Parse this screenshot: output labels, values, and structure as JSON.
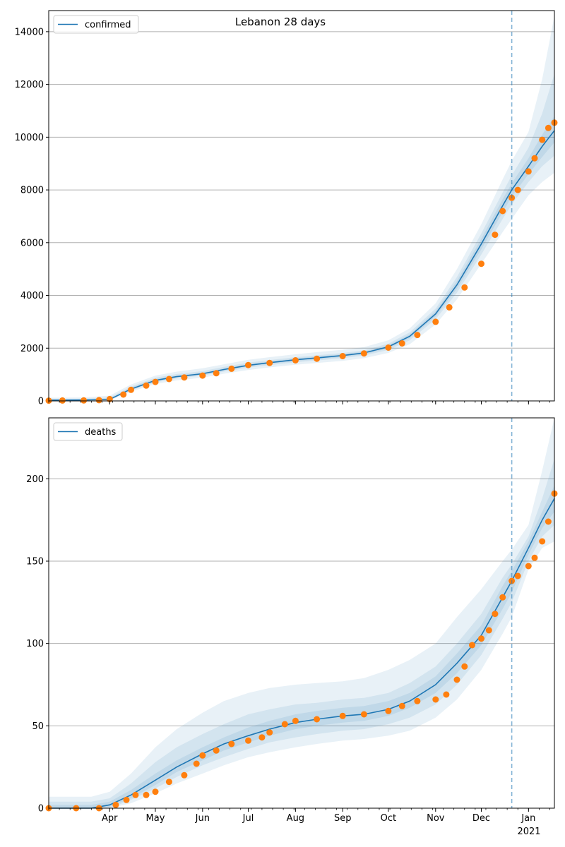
{
  "figure": {
    "title": "Lebanon 28 days",
    "year_label": "2021"
  },
  "colors": {
    "model_line": "#1f77b4",
    "band": "#1f77b4",
    "observed": "#ff7f0e",
    "grid": "#b0b0b0",
    "forecast_start_line": "#1f77b4"
  },
  "chart_data": [
    {
      "type": "line",
      "name": "confirmed",
      "legend": "confirmed",
      "legend_position": "top-left",
      "grid": "y",
      "xlim": [
        "2020-02-21",
        "2021-01-18"
      ],
      "ylim": [
        0,
        14800
      ],
      "yticks": [
        0,
        2000,
        4000,
        6000,
        8000,
        10000,
        12000,
        14000
      ],
      "forecast_start": "2020-12-21",
      "model": {
        "x": [
          "2020-02-21",
          "2020-03-15",
          "2020-04-01",
          "2020-04-15",
          "2020-05-01",
          "2020-05-15",
          "2020-06-01",
          "2020-06-15",
          "2020-07-01",
          "2020-07-15",
          "2020-08-01",
          "2020-08-15",
          "2020-09-01",
          "2020-09-15",
          "2020-10-01",
          "2020-10-15",
          "2020-11-01",
          "2020-11-15",
          "2020-12-01",
          "2020-12-15",
          "2020-12-21",
          "2021-01-01",
          "2021-01-10",
          "2021-01-18"
        ],
        "y": [
          30,
          35,
          60,
          450,
          780,
          920,
          1030,
          1190,
          1350,
          1450,
          1560,
          1630,
          1720,
          1820,
          2050,
          2450,
          3300,
          4400,
          5950,
          7400,
          8000,
          8900,
          9650,
          10250
        ]
      },
      "bands": [
        {
          "lo": [
            0,
            0,
            20,
            350,
            640,
            780,
            880,
            1030,
            1170,
            1270,
            1370,
            1440,
            1520,
            1620,
            1820,
            2150,
            2900,
            3850,
            5200,
            6400,
            6900,
            7800,
            8300,
            8650
          ],
          "hi": [
            120,
            130,
            200,
            620,
            960,
            1110,
            1240,
            1390,
            1560,
            1660,
            1770,
            1850,
            1940,
            2040,
            2300,
            2750,
            3700,
            5000,
            6700,
            8400,
            9100,
            10200,
            12200,
            14600
          ]
        },
        {
          "lo": [
            10,
            15,
            40,
            400,
            700,
            850,
            960,
            1110,
            1260,
            1360,
            1460,
            1530,
            1620,
            1720,
            1930,
            2300,
            3100,
            4100,
            5550,
            6900,
            7450,
            8300,
            8900,
            9300
          ],
          "hi": [
            70,
            80,
            130,
            540,
            880,
            1020,
            1130,
            1290,
            1450,
            1550,
            1660,
            1730,
            1820,
            1920,
            2170,
            2600,
            3500,
            4700,
            6350,
            7900,
            8550,
            9600,
            10900,
            12400
          ]
        },
        {
          "lo": [
            20,
            25,
            50,
            430,
            740,
            890,
            1000,
            1150,
            1310,
            1410,
            1510,
            1580,
            1670,
            1770,
            1990,
            2380,
            3200,
            4250,
            5750,
            7150,
            7750,
            8600,
            9250,
            9800
          ],
          "hi": [
            45,
            50,
            90,
            500,
            830,
            960,
            1070,
            1230,
            1390,
            1490,
            1610,
            1680,
            1770,
            1870,
            2110,
            2520,
            3400,
            4550,
            6150,
            7650,
            8250,
            9200,
            10100,
            10800
          ]
        }
      ],
      "observed": {
        "x": [
          "2020-02-21",
          "2020-03-01",
          "2020-03-15",
          "2020-03-25",
          "2020-04-01",
          "2020-04-10",
          "2020-04-15",
          "2020-04-25",
          "2020-05-01",
          "2020-05-10",
          "2020-05-20",
          "2020-06-01",
          "2020-06-10",
          "2020-06-20",
          "2020-07-01",
          "2020-07-15",
          "2020-08-01",
          "2020-08-15",
          "2020-09-01",
          "2020-09-15",
          "2020-10-01",
          "2020-10-10",
          "2020-10-20",
          "2020-11-01",
          "2020-11-10",
          "2020-11-20",
          "2020-12-01",
          "2020-12-10",
          "2020-12-15",
          "2020-12-21",
          "2020-12-25",
          "2021-01-01",
          "2021-01-05",
          "2021-01-10",
          "2021-01-14",
          "2021-01-18"
        ],
        "y": [
          10,
          15,
          20,
          30,
          70,
          240,
          420,
          580,
          720,
          830,
          890,
          960,
          1050,
          1220,
          1360,
          1440,
          1540,
          1600,
          1700,
          1800,
          2020,
          2180,
          2500,
          3000,
          3550,
          4300,
          5200,
          6300,
          7200,
          7700,
          8000,
          8700,
          9200,
          9900,
          10350,
          10550
        ]
      }
    },
    {
      "type": "line",
      "name": "deaths",
      "legend": "deaths",
      "legend_position": "top-left",
      "grid": "y",
      "xlim": [
        "2020-02-21",
        "2021-01-18"
      ],
      "ylim": [
        0,
        237
      ],
      "yticks": [
        0,
        50,
        100,
        150,
        200
      ],
      "forecast_start": "2020-12-21",
      "xticks": [
        "Apr",
        "May",
        "Jun",
        "Jul",
        "Aug",
        "Sep",
        "Oct",
        "Nov",
        "Dec",
        "Jan"
      ],
      "xtick_dates": [
        "2020-04-01",
        "2020-05-01",
        "2020-06-01",
        "2020-07-01",
        "2020-08-01",
        "2020-09-01",
        "2020-10-01",
        "2020-11-01",
        "2020-12-01",
        "2021-01-01"
      ],
      "model": {
        "x": [
          "2020-02-21",
          "2020-03-20",
          "2020-04-01",
          "2020-04-15",
          "2020-05-01",
          "2020-05-15",
          "2020-06-01",
          "2020-06-15",
          "2020-07-01",
          "2020-07-15",
          "2020-08-01",
          "2020-08-15",
          "2020-09-01",
          "2020-09-15",
          "2020-10-01",
          "2020-10-15",
          "2020-11-01",
          "2020-11-15",
          "2020-12-01",
          "2020-12-15",
          "2020-12-21",
          "2021-01-01",
          "2021-01-10",
          "2021-01-18"
        ],
        "y": [
          0,
          0,
          2,
          8,
          17,
          25,
          33,
          39,
          44,
          48,
          52,
          54,
          56,
          57,
          60,
          65,
          75,
          88,
          105,
          128,
          138,
          158,
          175,
          188
        ]
      },
      "bands": [
        {
          "lo": [
            0,
            0,
            0,
            3,
            9,
            15,
            21,
            26,
            31,
            34,
            37,
            39,
            41,
            42,
            44,
            47,
            55,
            66,
            84,
            106,
            116,
            145,
            158,
            162
          ],
          "hi": [
            7,
            7,
            10,
            21,
            37,
            48,
            58,
            65,
            70,
            73,
            75,
            76,
            77,
            79,
            84,
            90,
            100,
            116,
            133,
            150,
            157,
            172,
            205,
            237
          ]
        },
        {
          "lo": [
            0,
            0,
            0,
            5,
            12,
            19,
            26,
            31,
            36,
            40,
            43,
            45,
            47,
            48,
            51,
            55,
            63,
            75,
            93,
            115,
            125,
            150,
            165,
            172
          ],
          "hi": [
            4,
            4,
            6,
            15,
            28,
            37,
            45,
            51,
            57,
            60,
            63,
            64,
            66,
            67,
            70,
            76,
            86,
            100,
            118,
            140,
            148,
            165,
            188,
            212
          ]
        },
        {
          "lo": [
            0,
            0,
            1,
            6,
            14,
            22,
            29,
            35,
            40,
            44,
            48,
            50,
            52,
            53,
            56,
            61,
            70,
            82,
            99,
            121,
            131,
            154,
            170,
            180
          ],
          "hi": [
            2,
            2,
            4,
            11,
            21,
            29,
            37,
            43,
            49,
            53,
            57,
            59,
            61,
            62,
            65,
            70,
            80,
            94,
            111,
            135,
            144,
            162,
            180,
            196
          ]
        }
      ],
      "observed": {
        "x": [
          "2020-02-21",
          "2020-03-10",
          "2020-03-25",
          "2020-04-05",
          "2020-04-12",
          "2020-04-18",
          "2020-04-25",
          "2020-05-01",
          "2020-05-10",
          "2020-05-20",
          "2020-05-28",
          "2020-06-01",
          "2020-06-10",
          "2020-06-20",
          "2020-07-01",
          "2020-07-10",
          "2020-07-15",
          "2020-07-25",
          "2020-08-01",
          "2020-08-15",
          "2020-09-01",
          "2020-09-15",
          "2020-10-01",
          "2020-10-10",
          "2020-10-20",
          "2020-11-01",
          "2020-11-08",
          "2020-11-15",
          "2020-11-20",
          "2020-11-25",
          "2020-12-01",
          "2020-12-06",
          "2020-12-10",
          "2020-12-15",
          "2020-12-21",
          "2020-12-25",
          "2021-01-01",
          "2021-01-05",
          "2021-01-10",
          "2021-01-14",
          "2021-01-18"
        ],
        "y": [
          0,
          0,
          0,
          2,
          5,
          8,
          8,
          10,
          16,
          20,
          27,
          32,
          35,
          39,
          41,
          43,
          46,
          51,
          53,
          54,
          56,
          57,
          59,
          62,
          65,
          66,
          69,
          78,
          86,
          99,
          103,
          108,
          118,
          128,
          138,
          141,
          147,
          152,
          162,
          174,
          191
        ]
      }
    }
  ]
}
